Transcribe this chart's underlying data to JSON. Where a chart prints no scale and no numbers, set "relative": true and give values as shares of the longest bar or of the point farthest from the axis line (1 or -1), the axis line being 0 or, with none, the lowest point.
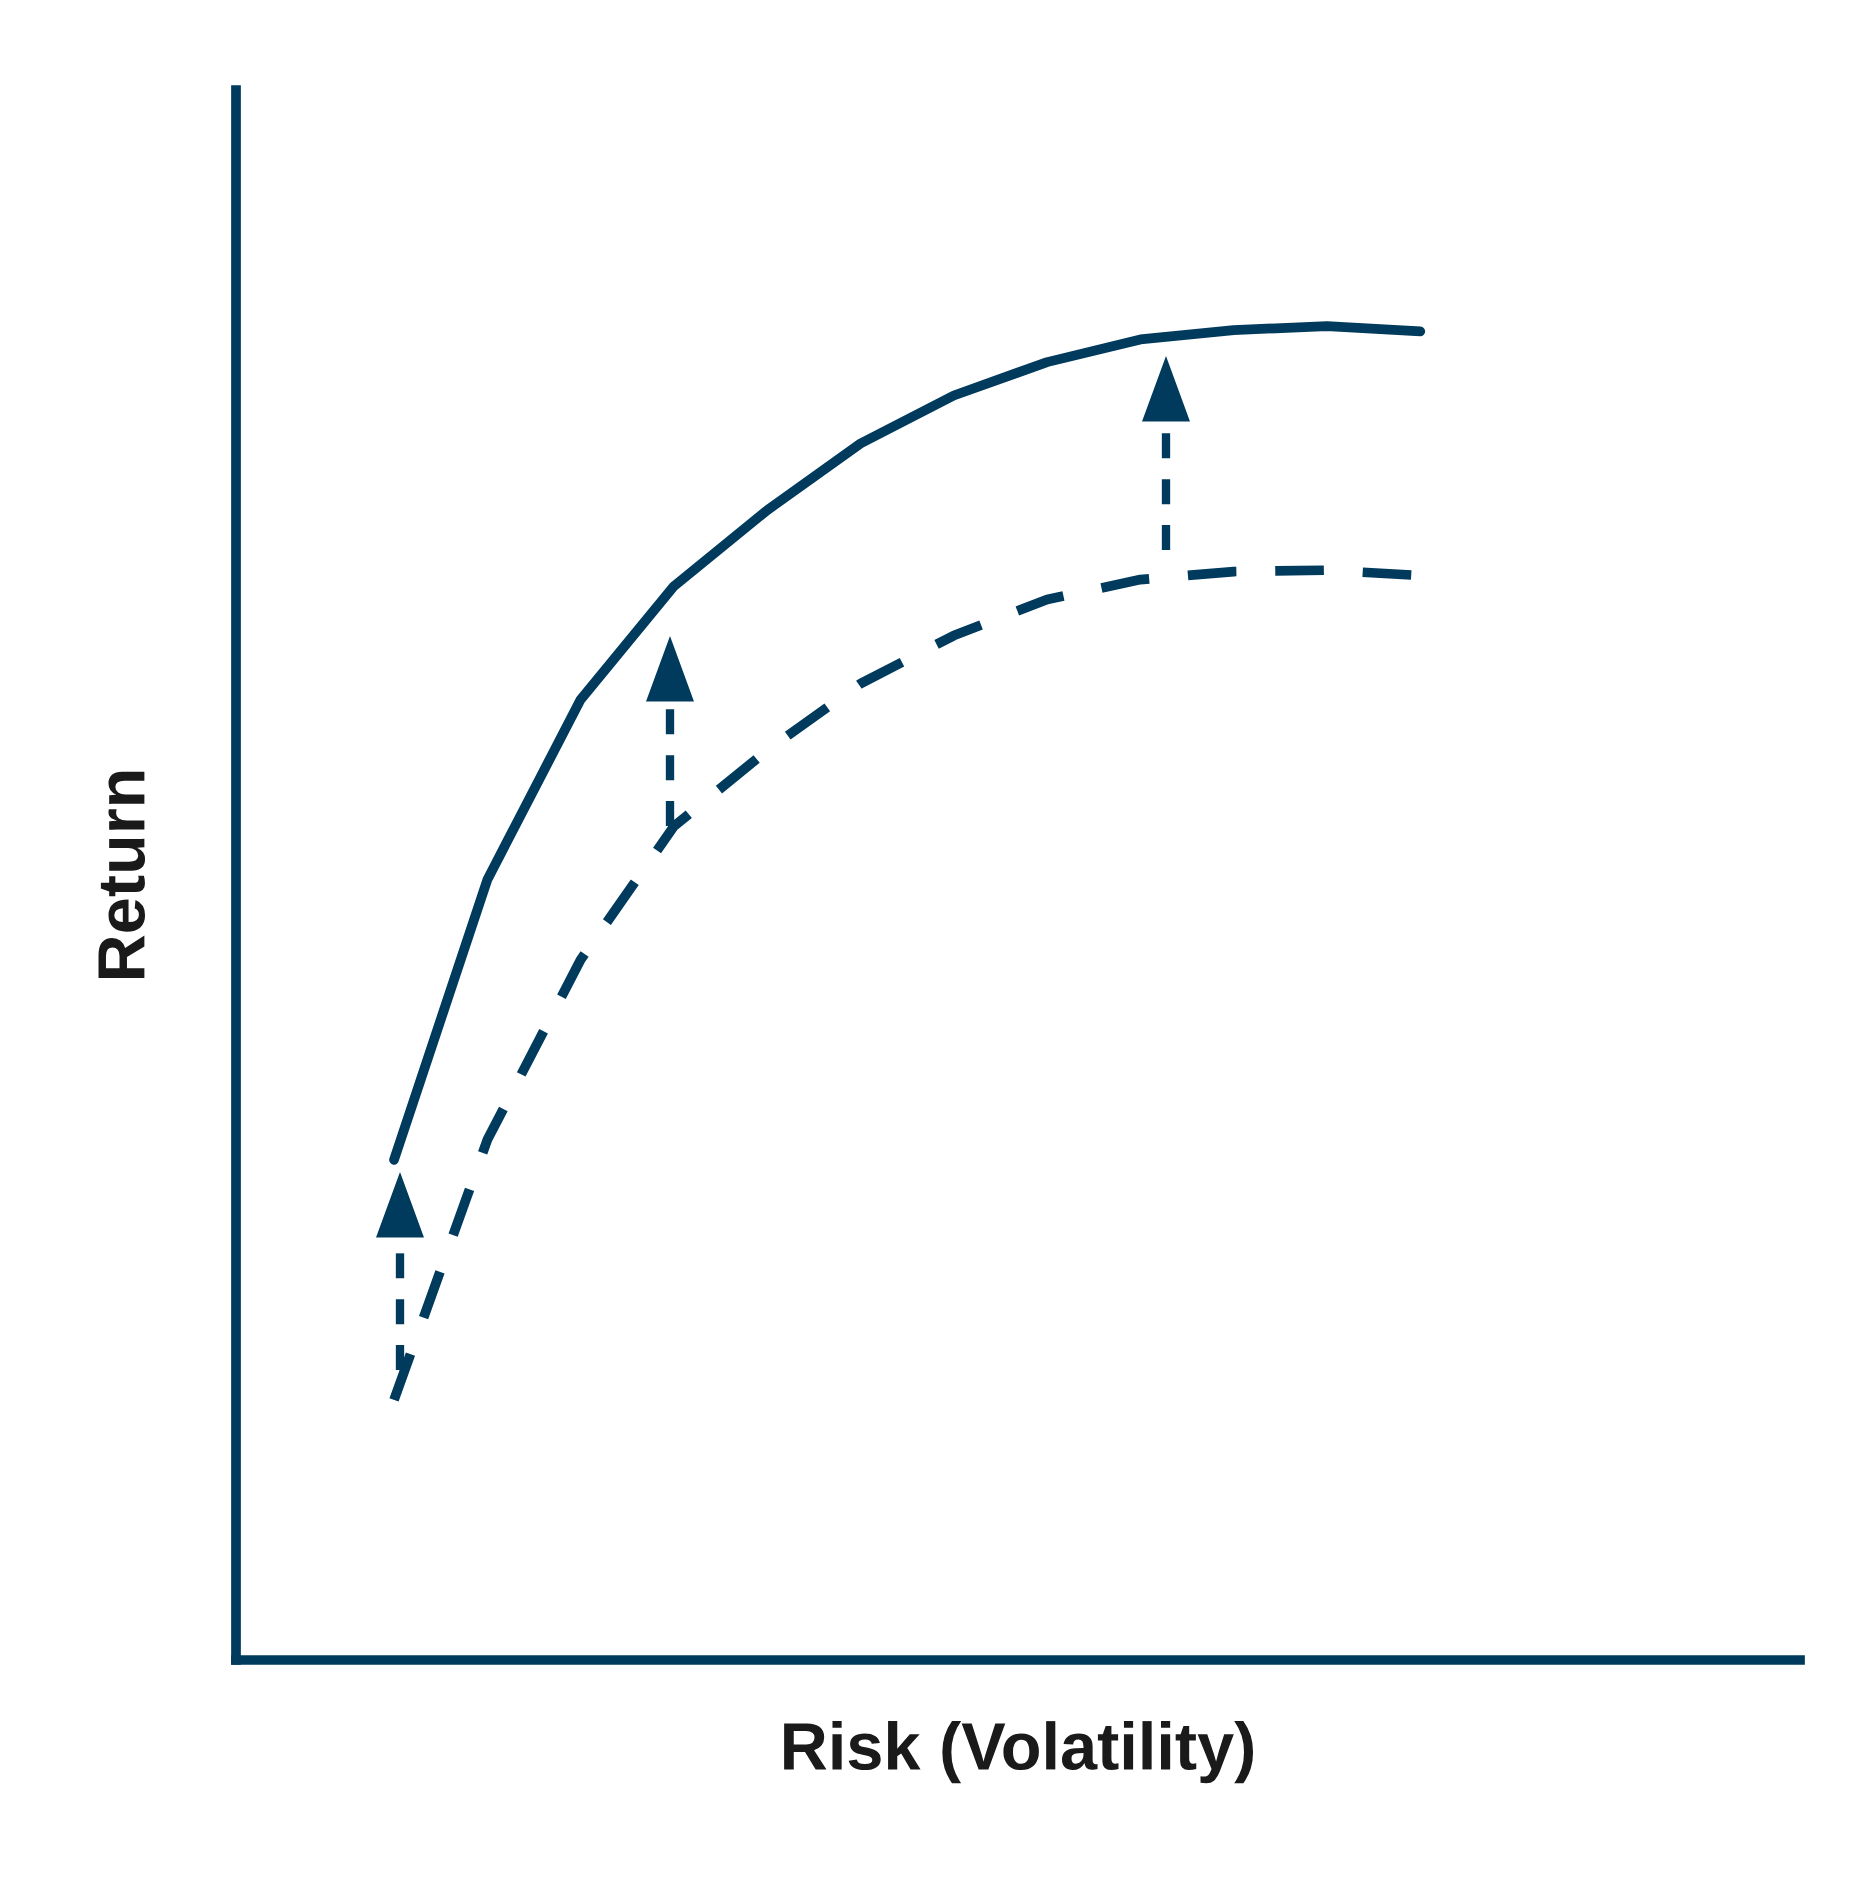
{
  "chart_data": {
    "type": "line",
    "xlabel": "Risk (Volatility)",
    "ylabel": "Return",
    "relative": true,
    "marker": "none",
    "categories": [
      null,
      null,
      null,
      null,
      null,
      null,
      null,
      null,
      null,
      null,
      null,
      null
    ],
    "series": [
      {
        "color": "#003a5c",
        "line_style": "solid",
        "values": [
          0.375,
          0.585,
          0.72,
          0.805,
          0.862,
          0.912,
          0.948,
          0.973,
          0.99,
          0.997,
          1,
          0.996
        ]
      },
      {
        "color": "#003a5c",
        "line_style": "dashed",
        "values": [
          0.195,
          0.39,
          0.525,
          0.625,
          0.682,
          0.732,
          0.768,
          0.795,
          0.81,
          0.816,
          0.817,
          0.813
        ]
      }
    ]
  }
}
